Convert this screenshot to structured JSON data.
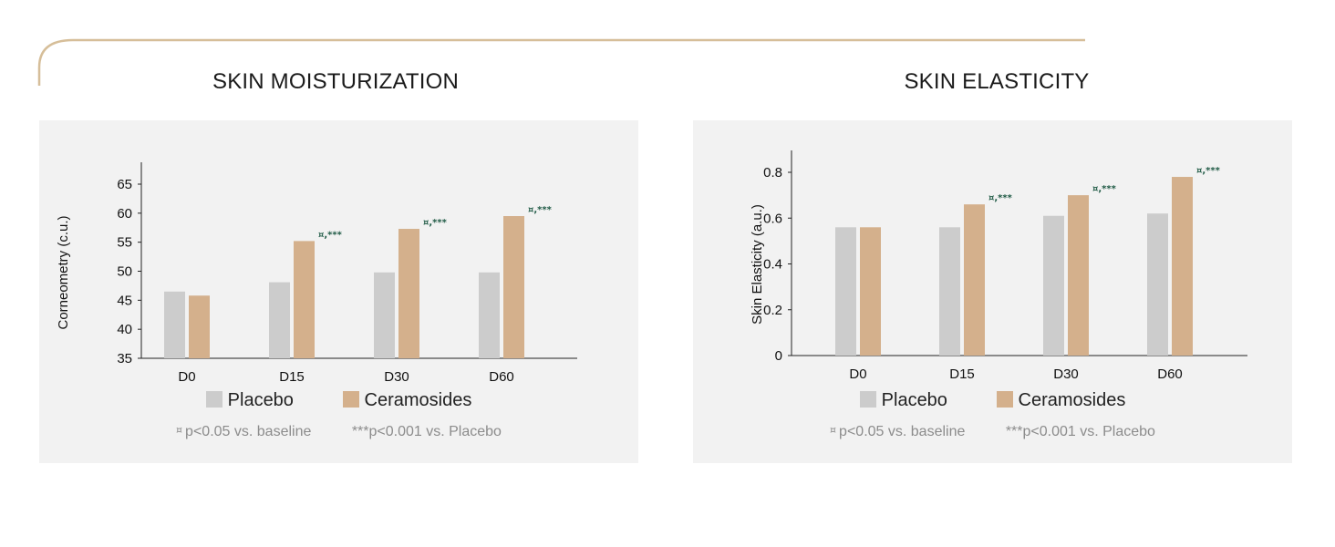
{
  "colors": {
    "placebo": "#cccccc",
    "ceramosides": "#d4b08c",
    "accent": "#d6be99",
    "significance": "#1f5a45"
  },
  "charts": [
    {
      "title": "SKIN MOISTURIZATION",
      "legend": {
        "placebo": "Placebo",
        "ceramosides": "Ceramosides"
      },
      "notes": {
        "symbol": "¤",
        "baseline": "p<0.05 vs. baseline",
        "placebo": "***p<0.001 vs. Placebo"
      }
    },
    {
      "title": "SKIN ELASTICITY",
      "legend": {
        "placebo": "Placebo",
        "ceramosides": "Ceramosides"
      },
      "notes": {
        "symbol": "¤",
        "baseline": "p<0.05 vs. baseline",
        "placebo": "***p<0.001 vs. Placebo"
      }
    }
  ],
  "chart_data": [
    {
      "type": "bar",
      "title": "SKIN MOISTURIZATION",
      "ylabel": "Corneometry (c.u.)",
      "xlabel": "",
      "categories": [
        "D0",
        "D15",
        "D30",
        "D60"
      ],
      "ylim": [
        35,
        65
      ],
      "yticks": [
        35,
        40,
        45,
        50,
        55,
        60,
        65
      ],
      "series": [
        {
          "name": "Placebo",
          "key": "placebo",
          "values": [
            46.5,
            48.1,
            49.8,
            49.8
          ]
        },
        {
          "name": "Ceramosides",
          "key": "ceramosides",
          "values": [
            45.8,
            55.2,
            57.3,
            59.5
          ]
        }
      ],
      "annotations": [
        "",
        "¤,***",
        "¤,***",
        "¤,***"
      ],
      "grid": false
    },
    {
      "type": "bar",
      "title": "SKIN ELASTICITY",
      "ylabel": "Skin Elasticity (a.u.)",
      "xlabel": "",
      "categories": [
        "D0",
        "D15",
        "D30",
        "D60"
      ],
      "ylim": [
        0,
        0.8
      ],
      "yticks": [
        0,
        0.2,
        0.4,
        0.6,
        0.8
      ],
      "series": [
        {
          "name": "Placebo",
          "key": "placebo",
          "values": [
            0.56,
            0.56,
            0.61,
            0.62
          ]
        },
        {
          "name": "Ceramosides",
          "key": "ceramosides",
          "values": [
            0.56,
            0.66,
            0.7,
            0.78
          ]
        }
      ],
      "annotations": [
        "",
        "¤,***",
        "¤,***",
        "¤,***"
      ],
      "grid": false
    }
  ]
}
